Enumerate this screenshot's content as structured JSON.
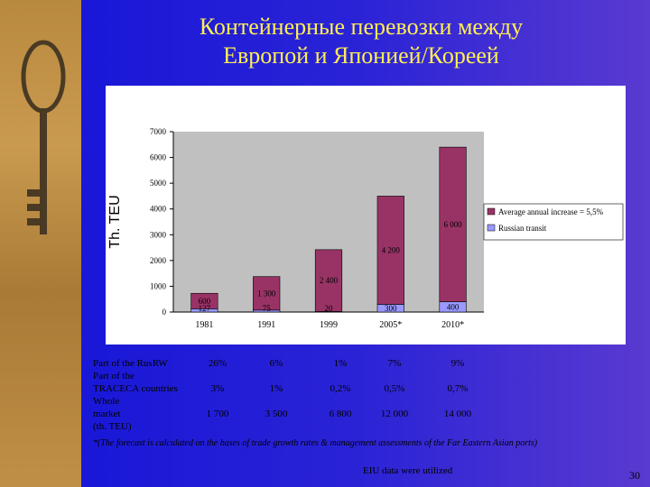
{
  "title_line1": "Контейнерные перевозки между",
  "title_line2": "Европой и Японией/Кореей",
  "chart_data": {
    "type": "bar",
    "ylabel": "Th. TEU",
    "categories": [
      "1981",
      "1991",
      "1999",
      "2005*",
      "2010*"
    ],
    "ylim": [
      0,
      7000
    ],
    "yticks": [
      0,
      1000,
      2000,
      3000,
      4000,
      5000,
      6000,
      7000
    ],
    "series": [
      {
        "name": "Russian transit",
        "values": [
          127,
          75,
          20,
          300,
          400
        ],
        "labels": [
          "127",
          "75",
          "20",
          "300",
          "400"
        ],
        "color": "#9999ff"
      },
      {
        "name": "Average annual increase = 5,5%",
        "values": [
          600,
          1300,
          2400,
          4200,
          6000
        ],
        "labels": [
          "600",
          "1 300",
          "2 400",
          "4 200",
          "6 000"
        ],
        "color": "#993366"
      }
    ],
    "legend_position": "right",
    "grid": false
  },
  "stats": {
    "rows": [
      {
        "label": "Part of the RusRW",
        "values": [
          "26%",
          "6%",
          "1%",
          "7%",
          "9%"
        ]
      },
      {
        "label": "Part of the",
        "values": []
      },
      {
        "label": "TRACECA countries",
        "values": [
          "3%",
          "1%",
          "0,2%",
          "0,5%",
          "0,7%"
        ]
      },
      {
        "label": "Whole",
        "values": []
      },
      {
        "label": "market",
        "values": [
          "1 700",
          "3 500",
          "6 800",
          "12 000",
          "14 000"
        ]
      },
      {
        "label": "(th. TEU)",
        "values": []
      }
    ]
  },
  "footnote": "*(The forecast is calculated on the bases of trade growth rates & management assessments of the Far Eastern Asian ports)",
  "source": "EIU data were utilized",
  "page_number": "30"
}
